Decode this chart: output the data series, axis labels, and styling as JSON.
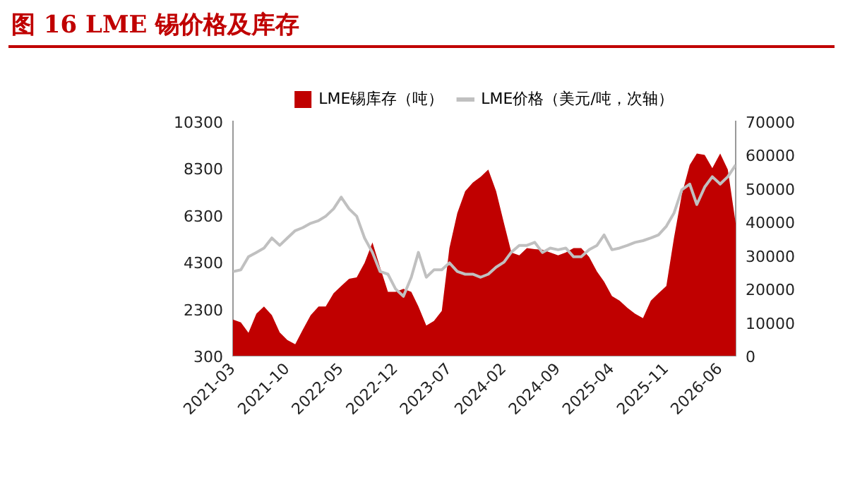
{
  "chart_data": {
    "type": "area",
    "title": "图 16 LME 锡价格及库存",
    "x": [
      "2021-03",
      "2021-04",
      "2021-05",
      "2021-06",
      "2021-07",
      "2021-08",
      "2021-09",
      "2021-10",
      "2021-11",
      "2021-12",
      "2022-01",
      "2022-02",
      "2022-03",
      "2022-04",
      "2022-05",
      "2022-06",
      "2022-07",
      "2022-08",
      "2022-09",
      "2022-10",
      "2022-11",
      "2022-12",
      "2023-01",
      "2023-02",
      "2023-03",
      "2023-04",
      "2023-05",
      "2023-06",
      "2023-07",
      "2023-08",
      "2023-09",
      "2023-10",
      "2023-11",
      "2023-12",
      "2024-01",
      "2024-02",
      "2024-03",
      "2024-04",
      "2024-05",
      "2024-06",
      "2024-07",
      "2024-08",
      "2024-09",
      "2024-10",
      "2024-11",
      "2024-12",
      "2025-01",
      "2025-02",
      "2025-03",
      "2025-04",
      "2025-05",
      "2025-06",
      "2025-07",
      "2025-08",
      "2025-09",
      "2025-10",
      "2025-11",
      "2025-12",
      "2026-01",
      "2026-02",
      "2026-03",
      "2026-04",
      "2026-05",
      "2026-06",
      "2026-07",
      "2026-08"
    ],
    "series": [
      {
        "name": "LME锡库存（吨）",
        "type": "area",
        "axis": "y",
        "color": "#c00000",
        "values": [
          1850,
          1730,
          1290,
          2100,
          2410,
          2040,
          1300,
          980,
          800,
          1420,
          2040,
          2410,
          2410,
          2970,
          3280,
          3590,
          3650,
          4270,
          5140,
          4090,
          3030,
          3030,
          3160,
          3030,
          2410,
          1600,
          1790,
          2220,
          4900,
          6390,
          7320,
          7690,
          7940,
          8250,
          7320,
          5950,
          4710,
          4590,
          4900,
          4850,
          4830,
          4710,
          4590,
          4710,
          4900,
          4900,
          4520,
          3900,
          3470,
          2850,
          2660,
          2350,
          2100,
          1910,
          2660,
          2970,
          3280,
          5330,
          7190,
          8440,
          8930,
          8870,
          8310,
          8930,
          8250,
          5950
        ]
      },
      {
        "name": "LME价格（美元/吨，次轴）",
        "type": "line",
        "axis": "y2",
        "color": "#c0c0c0",
        "values": [
          25200,
          25700,
          29600,
          30900,
          32200,
          35200,
          33000,
          35200,
          37400,
          38300,
          39600,
          40400,
          41700,
          43900,
          47400,
          43900,
          41700,
          35200,
          30900,
          25200,
          24400,
          20000,
          17800,
          23500,
          30900,
          23500,
          25700,
          25700,
          27800,
          25200,
          24400,
          24400,
          23500,
          24400,
          26500,
          28000,
          31000,
          33000,
          33000,
          33900,
          30900,
          32200,
          31700,
          32200,
          29600,
          29600,
          31700,
          33000,
          36100,
          31700,
          32200,
          33000,
          33900,
          34400,
          35200,
          36100,
          38700,
          42600,
          49600,
          51300,
          45200,
          50400,
          53500,
          51300,
          53500,
          57000
        ]
      }
    ],
    "xlim": [
      "2021-03",
      "2026-08"
    ],
    "xticks": [
      "2021-03",
      "2021-10",
      "2022-05",
      "2022-12",
      "2023-07",
      "2024-02",
      "2024-09",
      "2025-04",
      "2025-11",
      "2026-06"
    ],
    "ylim": [
      300,
      10300
    ],
    "yticks": [
      300,
      2300,
      4300,
      6300,
      8300,
      10300
    ],
    "y2lim": [
      0,
      70000
    ],
    "y2ticks": [
      0,
      10000,
      20000,
      30000,
      40000,
      50000,
      60000,
      70000
    ],
    "legend": "top",
    "grid": false,
    "marker": "none"
  }
}
